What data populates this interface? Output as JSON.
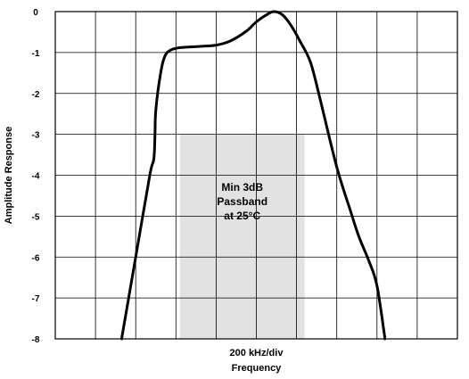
{
  "chart_data": {
    "type": "line",
    "xlabel_top": "200 kHz/div",
    "xlabel": "Frequency",
    "ylabel": "Amplitude Response",
    "ylim": [
      -8,
      0
    ],
    "yticks": [
      "0",
      "-1",
      "-2",
      "-3",
      "-4",
      "-5",
      "-6",
      "-7",
      "-8"
    ],
    "x_divisions": 10,
    "grid": true,
    "series": [
      {
        "values": [
          [
            1.65,
            -8
          ],
          [
            2.0,
            -6.0
          ],
          [
            2.35,
            -4.0
          ],
          [
            2.45,
            -3.6
          ],
          [
            2.48,
            -3.0
          ],
          [
            2.5,
            -2.4
          ],
          [
            2.62,
            -1.5
          ],
          [
            2.72,
            -1.1
          ],
          [
            2.85,
            -0.95
          ],
          [
            3.1,
            -0.88
          ],
          [
            3.6,
            -0.85
          ],
          [
            4.0,
            -0.82
          ],
          [
            4.35,
            -0.72
          ],
          [
            4.75,
            -0.48
          ],
          [
            5.0,
            -0.25
          ],
          [
            5.3,
            -0.05
          ],
          [
            5.45,
            0.0
          ],
          [
            5.65,
            -0.08
          ],
          [
            5.85,
            -0.32
          ],
          [
            6.1,
            -0.75
          ],
          [
            6.35,
            -1.25
          ],
          [
            6.6,
            -2.2
          ],
          [
            7.0,
            -3.8
          ],
          [
            7.35,
            -4.9
          ],
          [
            7.55,
            -5.5
          ],
          [
            7.8,
            -6.1
          ],
          [
            8.0,
            -6.7
          ],
          [
            8.2,
            -8.0
          ]
        ]
      }
    ],
    "annotation": {
      "lines": [
        "Min 3dB",
        "Passband",
        "at 25°C"
      ],
      "x_range": [
        3.1,
        6.2
      ],
      "y_range": [
        -8,
        -3
      ],
      "color": "#e2e2e2"
    }
  }
}
